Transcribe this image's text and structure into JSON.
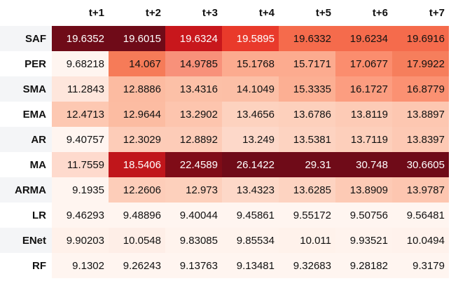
{
  "chart_data": {
    "type": "heatmap",
    "columns": [
      "t+1",
      "t+2",
      "t+3",
      "t+4",
      "t+5",
      "t+6",
      "t+7"
    ],
    "rows": [
      {
        "label": "SAF",
        "values": [
          "19.6352",
          "19.6015",
          "19.6324",
          "19.5895",
          "19.6332",
          "19.6234",
          "19.6916"
        ],
        "colors": [
          "#6f0b18",
          "#6f0b18",
          "#c8171c",
          "#e93a2b",
          "#f56b4c",
          "#f56b4c",
          "#f56b4c"
        ]
      },
      {
        "label": "PER",
        "values": [
          "9.68218",
          "14.067",
          "14.9785",
          "15.1768",
          "15.7171",
          "17.0677",
          "17.9922"
        ],
        "colors": [
          "#fff5f0",
          "#f67b58",
          "#f8917a",
          "#fcab8f",
          "#fcab8f",
          "#fb8d6e",
          "#f67e5c"
        ]
      },
      {
        "label": "SMA",
        "values": [
          "11.2843",
          "12.8886",
          "13.4316",
          "14.1049",
          "15.3335",
          "16.1727",
          "16.8779"
        ],
        "colors": [
          "#fee6dc",
          "#fcbba1",
          "#fcc0a7",
          "#fcbfa6",
          "#fcaf93",
          "#fc9d80",
          "#fb9172"
        ]
      },
      {
        "label": "EMA",
        "values": [
          "12.4713",
          "12.9644",
          "13.2902",
          "13.4656",
          "13.6786",
          "13.8119",
          "13.8897"
        ],
        "colors": [
          "#fdc8b2",
          "#fcbca2",
          "#fdc5ae",
          "#fdd2bf",
          "#fdd0bc",
          "#fdcbb6",
          "#fdc7b1"
        ]
      },
      {
        "label": "AR",
        "values": [
          "9.40757",
          "12.3029",
          "12.8892",
          "13.249",
          "13.5381",
          "13.7119",
          "13.8397"
        ],
        "colors": [
          "#fff5f0",
          "#fdccb8",
          "#fdccb8",
          "#fdd8c9",
          "#fdd3c1",
          "#fdcfbb",
          "#fdc9b4"
        ]
      },
      {
        "label": "MA",
        "values": [
          "11.7559",
          "18.5406",
          "22.4589",
          "26.1422",
          "29.31",
          "30.748",
          "30.6605"
        ],
        "colors": [
          "#fedacd",
          "#c0161b",
          "#7f0c17",
          "#6f0b18",
          "#6f0b18",
          "#6f0b18",
          "#6f0b18"
        ]
      },
      {
        "label": "ARMA",
        "values": [
          "9.1935",
          "12.2606",
          "12.973",
          "13.4323",
          "13.6285",
          "13.8909",
          "13.9787"
        ],
        "colors": [
          "#fff5f0",
          "#fdcdb9",
          "#fdd0bc",
          "#fdd8c8",
          "#fdd3c1",
          "#fdcab5",
          "#fdc6b0"
        ]
      },
      {
        "label": "LR",
        "values": [
          "9.46293",
          "9.48896",
          "9.40044",
          "9.45861",
          "9.55172",
          "9.50756",
          "9.56481"
        ],
        "colors": [
          "#fff5f0",
          "#fff5f0",
          "#fff5f0",
          "#fff5f0",
          "#fff5f0",
          "#fff5f0",
          "#fff5f0"
        ]
      },
      {
        "label": "ENet",
        "values": [
          "9.90203",
          "10.0548",
          "9.83085",
          "9.85534",
          "10.011",
          "9.93521",
          "10.0494"
        ],
        "colors": [
          "#fff1ea",
          "#feeee7",
          "#fff3ed",
          "#fff3ed",
          "#fff2eb",
          "#fff3ed",
          "#fff2ec"
        ]
      },
      {
        "label": "RF",
        "values": [
          "9.1302",
          "9.26243",
          "9.13763",
          "9.13481",
          "9.32683",
          "9.28182",
          "9.3179"
        ],
        "colors": [
          "#fff5f0",
          "#fff5f0",
          "#fff5f0",
          "#fff5f0",
          "#fff5f0",
          "#fff5f0",
          "#fff5f0"
        ]
      }
    ],
    "colormap": "Reds",
    "dark_text_threshold_color": "#ffffff",
    "light_text_color": "#111111"
  }
}
